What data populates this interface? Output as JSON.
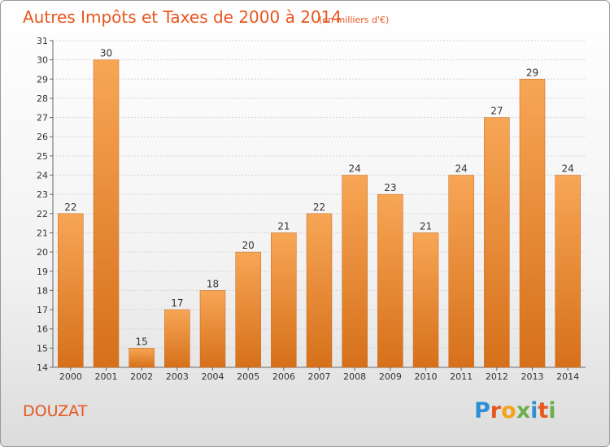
{
  "title": "Autres Impôts et Taxes de 2000 à 2014",
  "subtitle": "(en milliers d'€)",
  "commune": "DOUZAT",
  "brand": {
    "letters": [
      "P",
      "r",
      "o",
      "x",
      "i",
      "t",
      "i"
    ],
    "colors": [
      "#2e8fd6",
      "#e8561f",
      "#f5a31a",
      "#6ab04c",
      "#2e8fd6",
      "#e8561f",
      "#6ab04c"
    ]
  },
  "colors": {
    "bar_top": "#f7a656",
    "bar_bottom": "#d6701a",
    "text": "#e8561f",
    "axis": "#333333"
  },
  "chart_data": {
    "type": "bar",
    "categories": [
      "2000",
      "2001",
      "2002",
      "2003",
      "2004",
      "2005",
      "2006",
      "2007",
      "2008",
      "2009",
      "2010",
      "2011",
      "2012",
      "2013",
      "2014"
    ],
    "values": [
      22,
      30,
      15,
      17,
      18,
      20,
      21,
      22,
      24,
      23,
      21,
      24,
      27,
      29,
      24
    ],
    "title": "Autres Impôts et Taxes de 2000 à 2014",
    "subtitle": "(en milliers d'€)",
    "xlabel": "",
    "ylabel": "",
    "ylim": [
      14,
      31
    ],
    "yticks": [
      14,
      15,
      16,
      17,
      18,
      19,
      20,
      21,
      22,
      23,
      24,
      25,
      26,
      27,
      28,
      29,
      30,
      31
    ],
    "grid": true,
    "legend": "none"
  }
}
